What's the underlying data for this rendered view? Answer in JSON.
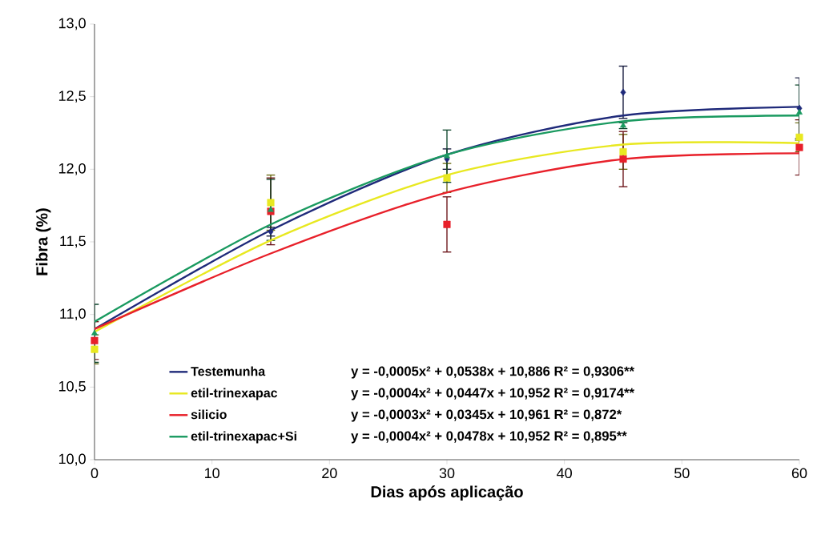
{
  "chart_data": {
    "type": "scatter",
    "xlabel": "Dias após aplicação",
    "ylabel": "Fibra   (%)",
    "xlim": [
      0,
      60
    ],
    "xticks": [
      0,
      10,
      20,
      30,
      40,
      50,
      60
    ],
    "ylim": [
      10,
      13
    ],
    "yticks": [
      {
        "value": 10,
        "label": "10,0"
      },
      {
        "value": 10.5,
        "label": "10,5"
      },
      {
        "value": 11,
        "label": "11,0"
      },
      {
        "value": 11.5,
        "label": "11,5"
      },
      {
        "value": 12,
        "label": "12,0"
      },
      {
        "value": 12.5,
        "label": "12,5"
      },
      {
        "value": 13,
        "label": "13,0"
      }
    ],
    "grid": false,
    "legend": "bottom",
    "x": [
      0,
      15,
      30,
      45,
      60
    ],
    "series": [
      {
        "type": "scatter",
        "marker": "diamond",
        "color": "#1f2a7a",
        "values": [
          null,
          11.57,
          12.07,
          12.53,
          12.42
        ],
        "errors": [
          null,
          0.03,
          0.07,
          0.18,
          0.21
        ]
      },
      {
        "type": "scatter",
        "marker": "square",
        "color": "#e8e820",
        "values": [
          10.76,
          11.77,
          11.94,
          12.12,
          12.22
        ],
        "errors": [
          0.1,
          0.19,
          0.1,
          0.12,
          0.1
        ]
      },
      {
        "type": "scatter",
        "marker": "square",
        "color": "#e8202a",
        "values": [
          10.82,
          11.71,
          11.62,
          12.07,
          12.15
        ],
        "errors": [
          0.13,
          0.23,
          0.19,
          0.19,
          0.19
        ]
      },
      {
        "type": "scatter",
        "marker": "triangle",
        "color": "#1a9a60",
        "values": [
          10.87,
          11.72,
          12.09,
          12.3,
          12.39
        ],
        "errors": [
          0.2,
          0.21,
          0.18,
          0.02,
          0.19
        ]
      },
      {
        "type": "line",
        "name": "Testemunha",
        "color": "#1f2a7a",
        "values": [
          10.9,
          11.58,
          12.1,
          12.37,
          12.43
        ]
      },
      {
        "type": "line",
        "name": "etil-trinexapac",
        "color": "#e8e820",
        "values": [
          10.88,
          11.51,
          11.96,
          12.17,
          12.18
        ]
      },
      {
        "type": "line",
        "name": "silicio",
        "color": "#e8202a",
        "values": [
          10.9,
          11.42,
          11.84,
          12.07,
          12.11
        ]
      },
      {
        "type": "line",
        "name": "etil-trinexapac+Si",
        "color": "#1a9a60",
        "values": [
          10.95,
          11.62,
          12.1,
          12.33,
          12.37
        ]
      }
    ],
    "annotations": [
      "y = -0,0005x² + 0,0538x + 10,886 R² = 0,9306**",
      "y = -0,0004x² + 0,0447x + 10,952 R² = 0,9174**",
      "y = -0,0003x² + 0,0345x + 10,961 R² = 0,872*",
      "y = -0,0004x² + 0,0478x + 10,952 R² = 0,895**"
    ]
  }
}
